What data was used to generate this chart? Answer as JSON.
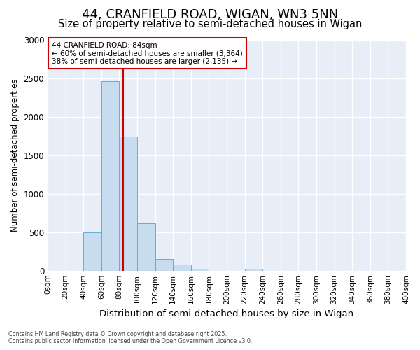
{
  "title_line1": "44, CRANFIELD ROAD, WIGAN, WN3 5NN",
  "title_line2": "Size of property relative to semi-detached houses in Wigan",
  "xlabel": "Distribution of semi-detached houses by size in Wigan",
  "ylabel": "Number of semi-detached properties",
  "bin_labels": [
    "0sqm",
    "20sqm",
    "40sqm",
    "60sqm",
    "80sqm",
    "100sqm",
    "120sqm",
    "140sqm",
    "160sqm",
    "180sqm",
    "200sqm",
    "220sqm",
    "240sqm",
    "260sqm",
    "280sqm",
    "300sqm",
    "320sqm",
    "340sqm",
    "360sqm",
    "380sqm",
    "400sqm"
  ],
  "bar_values": [
    0,
    0,
    500,
    2470,
    1750,
    620,
    150,
    80,
    30,
    0,
    0,
    30,
    0,
    0,
    0,
    0,
    0,
    0,
    0,
    0
  ],
  "bar_color": "#c8dcf0",
  "bar_edge_color": "#6aaad4",
  "ylim": [
    0,
    3000
  ],
  "yticks": [
    0,
    500,
    1000,
    1500,
    2000,
    2500,
    3000
  ],
  "vline_x": 84,
  "vline_color": "#cc0000",
  "annotation_text": "44 CRANFIELD ROAD: 84sqm\n← 60% of semi-detached houses are smaller (3,364)\n38% of semi-detached houses are larger (2,135) →",
  "annotation_box_color": "#ffffff",
  "annotation_border_color": "#cc0000",
  "footer_line1": "Contains HM Land Registry data © Crown copyright and database right 2025.",
  "footer_line2": "Contains public sector information licensed under the Open Government Licence v3.0.",
  "figure_bg": "#ffffff",
  "plot_bg": "#e8eef8",
  "grid_color": "#ffffff",
  "title_fontsize": 13,
  "subtitle_fontsize": 10.5,
  "ylabel_fontsize": 8.5,
  "xlabel_fontsize": 9.5
}
